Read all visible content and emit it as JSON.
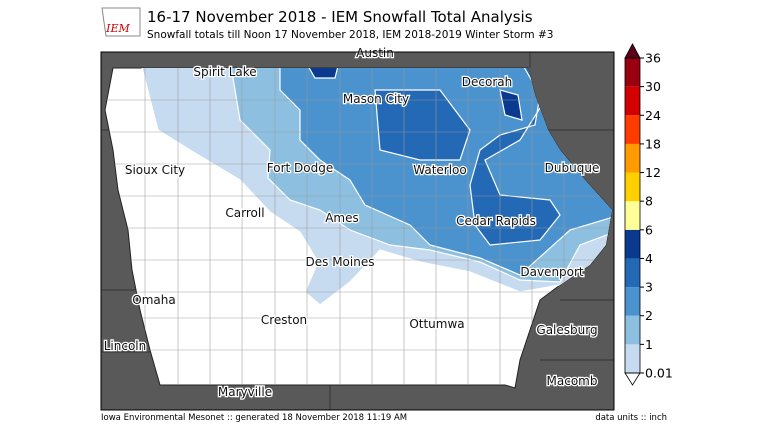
{
  "header": {
    "logo": "IEM",
    "title": "16-17 November 2018 - IEM Snowfall Total Analysis",
    "subtitle": "Snowfall totals till Noon 17 November 2018, IEM 2018-2019 Winter Storm #3"
  },
  "cities": [
    "Austin",
    "Spirit Lake",
    "Mason City",
    "Decorah",
    "Sioux City",
    "Fort Dodge",
    "Waterloo",
    "Dubuque",
    "Carroll",
    "Ames",
    "Cedar Rapids",
    "Des Moines",
    "Davenport",
    "Omaha",
    "Creston",
    "Ottumwa",
    "Galesburg",
    "Lincoln",
    "Macomb",
    "Maryville"
  ],
  "colorbar": {
    "levels": [
      0.01,
      1,
      2,
      3,
      4,
      6,
      8,
      12,
      18,
      24,
      30,
      36
    ],
    "colors": [
      "#c6dbef",
      "#8dc0e0",
      "#4a93cf",
      "#2469b5",
      "#0a3a8f",
      "#ffff99",
      "#ffd000",
      "#ff9a00",
      "#ff3b00",
      "#d40000",
      "#9a0010"
    ],
    "over_color": "#5a0018"
  },
  "footer": {
    "left": "Iowa Environmental Mesonet :: generated 18 November 2018 11:19 AM",
    "right": "data units :: inch"
  }
}
